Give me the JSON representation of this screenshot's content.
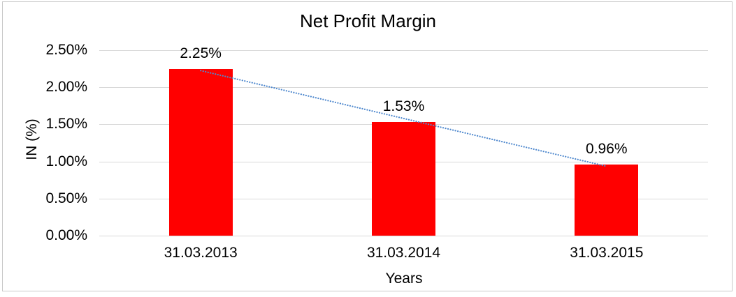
{
  "window": {
    "background": "#FFFFFF",
    "border_color": "#C8C8C8"
  },
  "chart_data": {
    "type": "bar",
    "title": "Net Profit Margin",
    "xlabel": "Years",
    "ylabel": "IN (%)",
    "categories": [
      "31.03.2013",
      "31.03.2014",
      "31.03.2015"
    ],
    "values": [
      2.25,
      1.53,
      0.96
    ],
    "data_labels": [
      "2.25%",
      "1.53%",
      "0.96%"
    ],
    "ylim": [
      0,
      2.5
    ],
    "yticks": [
      {
        "value": 0.0,
        "label": "0.00%"
      },
      {
        "value": 0.5,
        "label": "0.50%"
      },
      {
        "value": 1.0,
        "label": "1.00%"
      },
      {
        "value": 1.5,
        "label": "1.50%"
      },
      {
        "value": 2.0,
        "label": "2.00%"
      },
      {
        "value": 2.5,
        "label": "2.50%"
      }
    ],
    "grid": true,
    "legend": "none",
    "bar_color": "#FF0000",
    "gridline_color": "#D9D9D9",
    "trendline": {
      "type": "linear",
      "style": "dotted",
      "color": "#5089CE"
    }
  }
}
